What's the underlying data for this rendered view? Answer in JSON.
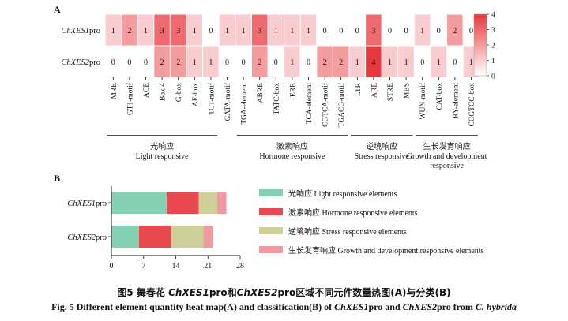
{
  "figure": {
    "panel_a_label": "A",
    "panel_b_label": "B",
    "caption_cn": "图5 舞春花 ChXES1pro 和 ChXES2pro 区域不同元件数量热图（A）与分类（B）",
    "caption_cn_parts": [
      "图5   舞春花 ",
      "ChXES1",
      "pro和",
      "ChXES2",
      "pro区域不同元件数量热图(A)与分类(B)"
    ],
    "caption_en_parts": [
      "Fig. 5   Different element quantity heat map(A) and classification(B) of ",
      "ChXES1",
      "pro and ",
      "ChXES2",
      "pro from ",
      "C. hybrida"
    ]
  },
  "chart_data": [
    {
      "type": "heatmap",
      "rows": [
        {
          "gene_italic": "ChXES1",
          "suffix": "pro"
        },
        {
          "gene_italic": "ChXES2",
          "suffix": "pro"
        }
      ],
      "columns": [
        "MRE",
        "GT1-motif",
        "ACE",
        "Box 4",
        "G-box",
        "AE-box",
        "TCT-motif",
        "GATA-motif",
        "TGA-element",
        "ABRE",
        "TATC-box",
        "ERE",
        "TCA-element",
        "CGTCA-motif",
        "TGACG-motif",
        "LTR",
        "ARE",
        "STRE",
        "MBS",
        "WUN-motif",
        "CAT-box",
        "RY-element",
        "CCGTCC-box"
      ],
      "values": [
        [
          1,
          2,
          1,
          3,
          3,
          1,
          0,
          1,
          1,
          3,
          1,
          1,
          1,
          0,
          0,
          0,
          3,
          0,
          0,
          1,
          0,
          2,
          0
        ],
        [
          0,
          0,
          0,
          2,
          2,
          1,
          1,
          0,
          0,
          2,
          0,
          1,
          0,
          2,
          2,
          1,
          4,
          1,
          1,
          0,
          1,
          0,
          1
        ]
      ],
      "colorbar": {
        "min": 0,
        "max": 4,
        "ticks": [
          "4",
          "3",
          "2",
          "1",
          "0"
        ],
        "low_color": "#ffffff",
        "high_color": "#e8383d"
      },
      "groups": [
        {
          "cn": "光响应",
          "en": "Light responsive",
          "start": 0,
          "end": 6
        },
        {
          "cn": "激素响应",
          "en": "Hormone responsive",
          "start": 8,
          "end": 14
        },
        {
          "cn": "逆境响应",
          "en": "Stress responsive",
          "start": 15,
          "end": 18
        },
        {
          "cn": "生长发育响应",
          "en": "Growth and development",
          "en2": "responsive",
          "start": 19,
          "end": 22
        }
      ]
    },
    {
      "type": "bar",
      "orientation": "horizontal-stacked",
      "categories": [
        {
          "gene_italic": "ChXES1",
          "suffix": "pro"
        },
        {
          "gene_italic": "ChXES2",
          "suffix": "pro"
        }
      ],
      "series": [
        {
          "name": "光响应 Light responsive elements",
          "color": "#86d0b3",
          "values": [
            12,
            6
          ]
        },
        {
          "name": "激素响应 Hormone responsive elements",
          "color": "#e8494e",
          "values": [
            7,
            7
          ]
        },
        {
          "name": "逆境响应 Stress responsive elements",
          "color": "#cfcf9a",
          "values": [
            4,
            7
          ]
        },
        {
          "name": "生长发育响应 Growth and development responsive elements",
          "color": "#f29aa1",
          "values": [
            2,
            2
          ]
        }
      ],
      "xticks": [
        "0",
        "7",
        "14",
        "21",
        "28"
      ],
      "xlim": [
        0,
        28
      ]
    }
  ]
}
